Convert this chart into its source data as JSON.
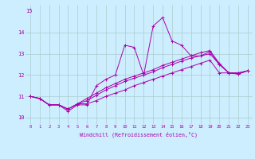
{
  "xlabel": "Windchill (Refroidissement éolien,°C)",
  "background_color": "#cceeff",
  "grid_color": "#aacccc",
  "line_color": "#aa00aa",
  "xlim_min": -0.5,
  "xlim_max": 23.5,
  "ylim_min": 9.7,
  "ylim_max": 15.3,
  "x_ticks": [
    0,
    1,
    2,
    3,
    4,
    5,
    6,
    7,
    8,
    9,
    10,
    11,
    12,
    13,
    14,
    15,
    16,
    17,
    18,
    19,
    20,
    21,
    22,
    23
  ],
  "y_ticks": [
    10,
    11,
    12,
    13,
    14
  ],
  "series": [
    [
      11.0,
      10.9,
      10.6,
      10.6,
      10.3,
      10.6,
      10.6,
      11.5,
      11.8,
      12.0,
      13.4,
      13.3,
      12.0,
      14.3,
      14.7,
      13.6,
      13.4,
      12.9,
      12.9,
      13.1,
      12.5,
      12.1,
      12.1,
      12.2
    ],
    [
      11.0,
      10.9,
      10.6,
      10.6,
      10.4,
      10.65,
      10.65,
      10.8,
      11.0,
      11.15,
      11.3,
      11.5,
      11.65,
      11.8,
      11.95,
      12.1,
      12.25,
      12.4,
      12.55,
      12.7,
      12.1,
      12.1,
      12.05,
      12.2
    ],
    [
      11.0,
      10.9,
      10.6,
      10.6,
      10.4,
      10.65,
      10.8,
      11.05,
      11.3,
      11.5,
      11.7,
      11.85,
      12.0,
      12.15,
      12.35,
      12.5,
      12.65,
      12.8,
      12.9,
      13.0,
      12.5,
      12.1,
      12.05,
      12.2
    ],
    [
      11.0,
      10.9,
      10.6,
      10.6,
      10.4,
      10.65,
      10.9,
      11.15,
      11.4,
      11.6,
      11.8,
      11.95,
      12.1,
      12.25,
      12.45,
      12.6,
      12.75,
      12.9,
      13.05,
      13.15,
      12.55,
      12.1,
      12.1,
      12.2
    ]
  ]
}
